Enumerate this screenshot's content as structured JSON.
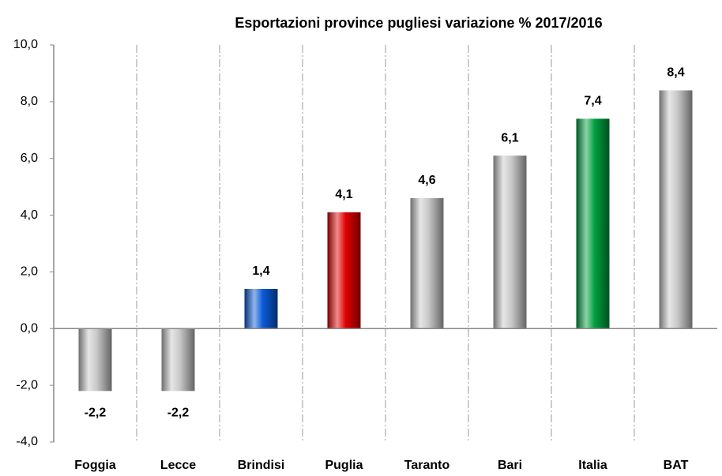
{
  "chart_data": {
    "type": "bar",
    "title": "Esportazioni province pugliesi variazione % 2017/2016",
    "categories": [
      "Foggia",
      "Lecce",
      "Brindisi",
      "Puglia",
      "Taranto",
      "Bari",
      "Italia",
      "BAT"
    ],
    "values": [
      -2.2,
      -2.2,
      1.4,
      4.1,
      4.6,
      6.1,
      7.4,
      8.4
    ],
    "value_labels": [
      "-2,2",
      "-2,2",
      "1,4",
      "4,1",
      "4,6",
      "6,1",
      "7,4",
      "8,4"
    ],
    "colors": [
      "#c8c8c8",
      "#c8c8c8",
      "#0a5ad8",
      "#e00000",
      "#c8c8c8",
      "#c8c8c8",
      "#00a040",
      "#c8c8c8"
    ],
    "ylim": [
      -4,
      10
    ],
    "yticks": [
      {
        "value": -4,
        "label": "-4,0"
      },
      {
        "value": -2,
        "label": "-2,0"
      },
      {
        "value": 0,
        "label": "0,0"
      },
      {
        "value": 2,
        "label": "2,0"
      },
      {
        "value": 4,
        "label": "4,0"
      },
      {
        "value": 6,
        "label": "6,0"
      },
      {
        "value": 8,
        "label": "8,0"
      },
      {
        "value": 10,
        "label": "10,0"
      }
    ],
    "grid": false
  }
}
